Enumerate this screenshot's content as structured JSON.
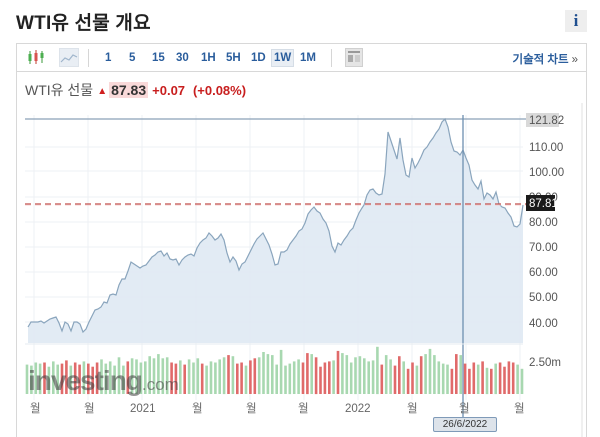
{
  "header": {
    "title": "WTI유 선물 개요",
    "info_icon": "i"
  },
  "toolbar": {
    "chart_type_icons": [
      "candlestick-icon",
      "line-chart-icon"
    ],
    "intervals": [
      "1",
      "5",
      "15",
      "30",
      "1H",
      "5H",
      "1D",
      "1W",
      "1M"
    ],
    "active_interval": "1W",
    "report_icon": "report-icon",
    "technical_chart_label": "기술적 차트",
    "technical_chart_arrow": "»"
  },
  "quote": {
    "name": "WTI유 선물",
    "direction_icon": "up-arrow-icon",
    "price": "87.83",
    "change": "+0.07",
    "change_pct": "(+0.08%)",
    "up_color": "#c81e1e"
  },
  "watermark": {
    "text": "investing",
    "suffix": ".com"
  },
  "crosshair": {
    "date_label": "26/6/2022",
    "high_label": "121.82",
    "current_label": "87.81"
  },
  "chart_data": {
    "type": "area",
    "title": "WTI유 선물",
    "interval": "1W",
    "xlabel": "",
    "ylabel": "",
    "x_tick_labels": [
      "월",
      "월",
      "2021",
      "월",
      "월",
      "월",
      "2022",
      "월",
      "월",
      "월"
    ],
    "y_tick_labels": [
      "40.00",
      "50.00",
      "60.00",
      "70.00",
      "80.00",
      "90.00",
      "100.00",
      "110.00"
    ],
    "ylim": [
      36,
      124
    ],
    "highlight_lines": [
      {
        "label": "121.82",
        "value": 121.82,
        "style": "solid"
      },
      {
        "label": "87.81",
        "value": 87.81,
        "style": "dashed",
        "color": "#c0392b"
      }
    ],
    "crosshair_date": "26/6/2022",
    "approx_series": {
      "name": "WTI Close (weekly, approx.)",
      "values": [
        38.5,
        40.5,
        40.5,
        40.8,
        40.2,
        40.8,
        41.5,
        42,
        39,
        36.5,
        40.5,
        40,
        37,
        40.5,
        40,
        36,
        35.5,
        38,
        41,
        44,
        45,
        46.5,
        48,
        47.5,
        50,
        50.5,
        50.5,
        55,
        57.5,
        58,
        61,
        63,
        63.5,
        63,
        62,
        64.5,
        63.5,
        64.5,
        66,
        66.5,
        65,
        67.5,
        70,
        71.5,
        72.5,
        73,
        71.5,
        72,
        70,
        65.5,
        68.5,
        66.5,
        61,
        64,
        66,
        66.5,
        67.5,
        70,
        72.5,
        75,
        78.5,
        80,
        81.5,
        81,
        80,
        80,
        78,
        73,
        69,
        68,
        73.5,
        72.5,
        75,
        78,
        80,
        84.5,
        87,
        89,
        92,
        95.5,
        96,
        94.5,
        95.5,
        116,
        108,
        102,
        113,
        97,
        94.5,
        104,
        100,
        104,
        110,
        112,
        115,
        118,
        121.82,
        111,
        108.5,
        109,
        102,
        96,
        93,
        98,
        88.5,
        91.5,
        90.5,
        92.5,
        87.5,
        86.5,
        83,
        79,
        80,
        87.81
      ]
    },
    "volume": {
      "axis_label": "2.50m",
      "colors": {
        "up": "#a8d8b0",
        "down": "#e06a6a"
      }
    }
  }
}
